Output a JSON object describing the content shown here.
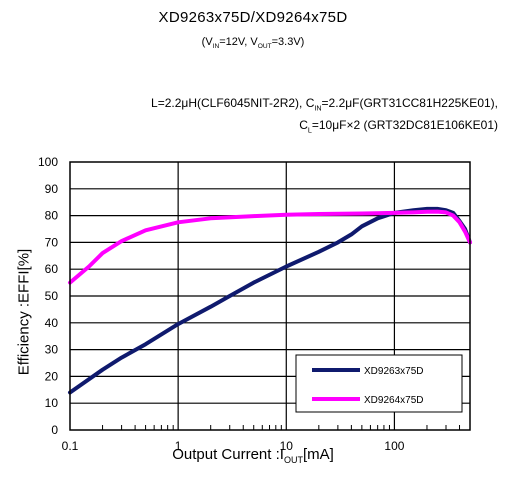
{
  "header": {
    "title": "XD9263x75D/XD9264x75D",
    "subtitle_html": "(V<sub>IN</sub>=12V, V<sub>OUT</sub>=3.3V)",
    "cond1_html": "L=2.2μH(CLF6045NIT-2R2), C<sub>IN</sub>=2.2μF(GRT31CC81H225KE01),",
    "cond2_html": "C<sub>L</sub>=10μF×2 (GRT32DC81E106KE01)"
  },
  "colors": {
    "series1": "#0f1a6e",
    "series2": "#ff00ff",
    "axis": "#000000",
    "grid": "#000000"
  },
  "chart_data": {
    "type": "line",
    "title": "XD9263x75D/XD9264x75D",
    "xlabel_html": "Output Current :I<sub>OUT</sub>[mA]",
    "ylabel": "Efficiency :EFFI[%]",
    "xscale": "log",
    "xlim": [
      0.1,
      500
    ],
    "ylim": [
      0,
      100
    ],
    "xticks": [
      0.1,
      1,
      10,
      100
    ],
    "xtick_labels": [
      "0.1",
      "1",
      "10",
      "100"
    ],
    "yticks": [
      0,
      10,
      20,
      30,
      40,
      50,
      60,
      70,
      80,
      90,
      100
    ],
    "ytick_labels": [
      "0",
      "10",
      "20",
      "30",
      "40",
      "50",
      "60",
      "70",
      "80",
      "90",
      "100"
    ],
    "grid": true,
    "legend_position": "bottom-right",
    "series": [
      {
        "name": "XD9263x75D",
        "x": [
          0.1,
          0.2,
          0.3,
          0.5,
          1,
          2,
          3,
          5,
          10,
          20,
          30,
          40,
          50,
          70,
          100,
          150,
          200,
          250,
          300,
          350,
          400,
          450,
          500
        ],
        "y": [
          14,
          22.5,
          27,
          32,
          39.5,
          46,
          50,
          55,
          61,
          66.5,
          70,
          73,
          76,
          79,
          81,
          82,
          82.5,
          82.5,
          82,
          81,
          78,
          75,
          70
        ]
      },
      {
        "name": "XD9264x75D",
        "x": [
          0.1,
          0.15,
          0.2,
          0.3,
          0.5,
          1,
          2,
          5,
          10,
          20,
          50,
          100,
          150,
          200,
          250,
          300,
          350,
          400,
          450,
          500
        ],
        "y": [
          55,
          61,
          66,
          70.5,
          74.5,
          77.5,
          79,
          79.8,
          80.3,
          80.6,
          80.8,
          81,
          81.2,
          81.4,
          81.5,
          81.2,
          80,
          77.5,
          74,
          70
        ]
      }
    ]
  }
}
